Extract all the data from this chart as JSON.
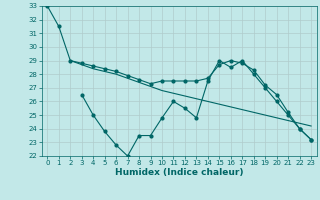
{
  "title": "",
  "xlabel": "Humidex (Indice chaleur)",
  "bg_color": "#c2e8e8",
  "grid_color": "#b0cccc",
  "line_color": "#006666",
  "xlim": [
    -0.5,
    23.5
  ],
  "ylim": [
    22,
    33
  ],
  "xticks": [
    0,
    1,
    2,
    3,
    4,
    5,
    6,
    7,
    8,
    9,
    10,
    11,
    12,
    13,
    14,
    15,
    16,
    17,
    18,
    19,
    20,
    21,
    22,
    23
  ],
  "yticks": [
    22,
    23,
    24,
    25,
    26,
    27,
    28,
    29,
    30,
    31,
    32,
    33
  ],
  "line1_x": [
    0,
    1,
    2,
    3,
    4,
    5,
    6,
    7,
    8,
    9,
    10,
    11,
    12,
    13,
    14,
    15,
    16,
    17,
    18,
    19,
    20,
    21,
    22,
    23
  ],
  "line1_y": [
    33,
    31.5,
    29.0,
    28.8,
    28.6,
    28.4,
    28.2,
    27.9,
    27.6,
    27.3,
    27.5,
    27.5,
    27.5,
    27.5,
    27.7,
    28.7,
    29.0,
    28.8,
    28.3,
    27.2,
    26.5,
    25.2,
    24.0,
    23.2
  ],
  "line2_x": [
    2,
    3,
    4,
    5,
    6,
    7,
    8,
    9,
    10,
    11,
    12,
    13,
    14,
    15,
    16,
    17,
    18,
    19,
    20,
    21,
    22,
    23
  ],
  "line2_y": [
    29.0,
    28.7,
    28.4,
    28.2,
    28.0,
    27.7,
    27.4,
    27.1,
    26.8,
    26.6,
    26.4,
    26.2,
    26.0,
    25.8,
    25.6,
    25.4,
    25.2,
    25.0,
    24.8,
    24.6,
    24.4,
    24.2
  ],
  "line3_x": [
    3,
    4,
    5,
    6,
    7,
    8,
    9,
    10,
    11,
    12,
    13,
    14,
    15,
    16,
    17,
    18,
    19,
    20,
    21,
    22,
    23
  ],
  "line3_y": [
    26.5,
    25.0,
    23.8,
    22.8,
    22.0,
    23.5,
    23.5,
    24.8,
    26.0,
    25.5,
    24.8,
    27.5,
    29.0,
    28.5,
    29.0,
    28.0,
    27.0,
    26.0,
    25.0,
    24.0,
    23.2
  ],
  "xlabel_fontsize": 6.5,
  "tick_fontsize": 5,
  "lw": 0.8,
  "ms": 2
}
